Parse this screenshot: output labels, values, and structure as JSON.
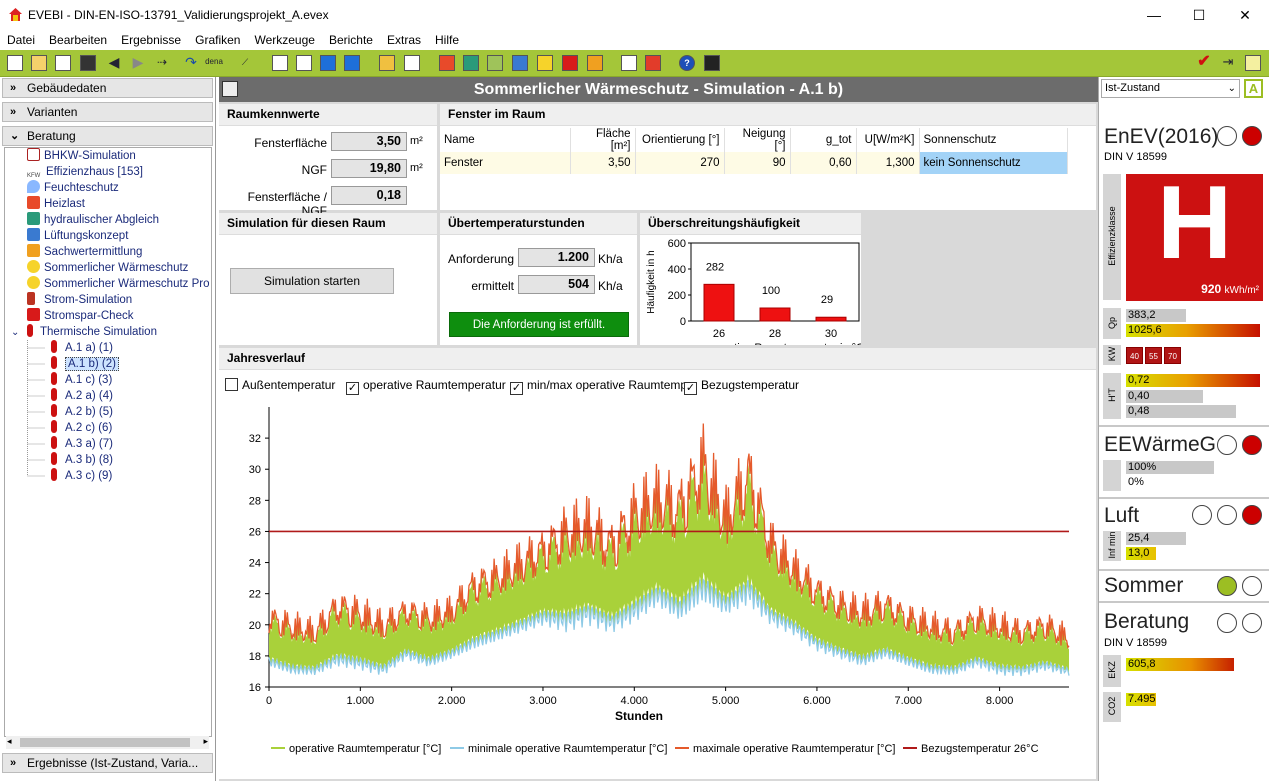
{
  "window": {
    "title": "EVEBI  - DIN-EN-ISO-13791_Validierungsprojekt_A.evex",
    "min": "—",
    "max": "☐",
    "close": "✕"
  },
  "menu": [
    "Datei",
    "Bearbeiten",
    "Ergebnisse",
    "Grafiken",
    "Werkzeuge",
    "Berichte",
    "Extras",
    "Hilfe"
  ],
  "toolbar": {
    "dena_label": "dena"
  },
  "left": {
    "sections": {
      "gebaeude": "Gebäudedaten",
      "varianten": "Varianten",
      "beratung": "Beratung",
      "ergebnisse": "Ergebnisse (Ist-Zustand, Varia..."
    },
    "tree": [
      "BHKW-Simulation",
      "Effizienzhaus [153]",
      "Feuchteschutz",
      "Heizlast",
      "hydraulischer Abgleich",
      "Lüftungskonzept",
      "Sachwertermittlung",
      "Sommerlicher Wärmeschutz",
      "Sommerlicher Wärmeschutz Pro",
      "Strom-Simulation",
      "Stromspar-Check",
      "Thermische Simulation"
    ],
    "kfw_icon_text": "KFW",
    "subitems": [
      "A.1 a) (1)",
      "A.1 b) (2)",
      "A.1 c) (3)",
      "A.2 a) (4)",
      "A.2 b) (5)",
      "A.2 c) (6)",
      "A.3 a) (7)",
      "A.3 b) (8)",
      "A.3 c) (9)"
    ]
  },
  "main": {
    "title": "Sommerlicher Wärmeschutz - Simulation - A.1 b)",
    "raumkennwerte": {
      "title": "Raumkennwerte",
      "fensterflaeche_label": "Fensterfläche",
      "fensterflaeche": "3,50",
      "unit_m2": "m²",
      "ngf_label": "NGF",
      "ngf": "19,80",
      "ratio_label": "Fensterfläche / NGF",
      "ratio": "0,18"
    },
    "fenster": {
      "title": "Fenster im Raum",
      "headers": [
        "Name",
        "Fläche [m²]",
        "Orientierung [°]",
        "Neigung [°]",
        "g_tot",
        "U[W/m²K]",
        "Sonnenschutz"
      ],
      "row": [
        "Fenster",
        "3,50",
        "270",
        "90",
        "0,60",
        "1,300",
        "kein Sonnenschutz"
      ]
    },
    "simulation": {
      "title": "Simulation für diesen Raum",
      "button": "Simulation starten"
    },
    "uebertemp": {
      "title": "Übertemperaturstunden",
      "anforderung_label": "Anforderung",
      "anforderung": "1.200",
      "ermittelt_label": "ermittelt",
      "ermittelt": "504",
      "unit": "Kh/a",
      "status": "Die Anforderung ist erfüllt."
    },
    "haeufigkeit": {
      "title": "Überschreitungshäufigkeit"
    },
    "jahresverlauf": {
      "title": "Jahresverlauf",
      "checks": [
        "Außentemperatur",
        "operative Raumtemperatur",
        "min/max operative Raumtemp.",
        "Bezugstemperatur"
      ],
      "checked": [
        false,
        true,
        true,
        true
      ]
    }
  },
  "chart_data": [
    {
      "type": "bar",
      "title": "",
      "xlabel": "operative Raumtemperatur in °C",
      "ylabel": "Häufigkeit in h",
      "categories": [
        "26",
        "28",
        "30"
      ],
      "values": [
        282,
        100,
        29
      ],
      "data_labels": [
        "282",
        "100",
        "29"
      ],
      "ylim": [
        0,
        600
      ],
      "yticks": [
        "0",
        "200",
        "400",
        "600"
      ],
      "color": "#ee1111"
    },
    {
      "type": "line",
      "title": "",
      "xlabel": "Stunden",
      "ylabel": "",
      "xlim": [
        0,
        8760
      ],
      "ylim": [
        16,
        34
      ],
      "xticks": [
        "0",
        "1.000",
        "2.000",
        "3.000",
        "4.000",
        "5.000",
        "6.000",
        "7.000",
        "8.000"
      ],
      "yticks": [
        "16",
        "18",
        "20",
        "22",
        "24",
        "26",
        "28",
        "30",
        "32"
      ],
      "legend": [
        "operative Raumtemperatur [°C]",
        "minimale operative Raumtemperatur [°C]",
        "maximale operative Raumtemperatur [°C]",
        "Bezugstemperatur 26°C"
      ],
      "legend_position": "bottom",
      "colors": {
        "operative": "#a9d13a",
        "minimum": "#8ecae6",
        "maximum": "#e55a2b",
        "reference": "#b01a1a"
      },
      "reference": 26,
      "envelope_x": [
        0,
        250,
        500,
        750,
        1000,
        1250,
        1500,
        1750,
        2000,
        2250,
        2500,
        2750,
        3000,
        3250,
        3500,
        3750,
        4000,
        4250,
        4500,
        4750,
        5000,
        5250,
        5500,
        5750,
        6000,
        6250,
        6500,
        6750,
        7000,
        7250,
        7500,
        7750,
        8000,
        8250,
        8500,
        8760
      ],
      "max_series": [
        21.5,
        21.0,
        20.5,
        22.5,
        22.0,
        21.0,
        22.0,
        21.5,
        22.0,
        24.0,
        24.5,
        25.5,
        26.5,
        28.0,
        28.5,
        27.0,
        29.5,
        30.5,
        30.0,
        33.5,
        29.0,
        32.5,
        27.0,
        25.0,
        23.5,
        22.5,
        22.0,
        22.5,
        21.5,
        21.0,
        20.5,
        21.5,
        21.0,
        20.5,
        21.0,
        20.0
      ],
      "min_series": [
        17.0,
        16.5,
        16.5,
        17.0,
        16.8,
        16.5,
        17.5,
        17.0,
        17.5,
        18.0,
        18.5,
        19.0,
        19.5,
        19.0,
        19.5,
        19.0,
        19.5,
        20.5,
        19.5,
        20.5,
        20.0,
        20.5,
        19.5,
        19.0,
        18.0,
        17.5,
        17.0,
        17.5,
        17.0,
        16.5,
        16.5,
        17.0,
        16.5,
        16.5,
        16.8,
        16.5
      ]
    }
  ],
  "right": {
    "state": "Ist-Zustand",
    "state_badge": "A",
    "enev": {
      "title": "EnEV(2016)",
      "norm": "DIN V 18599",
      "effizienz_label": "Effizienzklasse",
      "letter": "H",
      "value": "920",
      "unit": "kWh/m²",
      "qp_label": "Qp",
      "qp1": "383,2",
      "qp2": "1025,6",
      "qp_fill": 1.0,
      "kw_label": "KW",
      "kw": [
        "40",
        "55",
        "70"
      ],
      "ht_label": "H'T",
      "ht1": "0,72",
      "ht2": "0,40",
      "ht3": "0,48",
      "ht_fill": 1.0
    },
    "eew": {
      "title": "EEWärmeG",
      "v1": "100%",
      "v2": "0%"
    },
    "luft": {
      "title": "Luft",
      "label": "Inf min",
      "v1": "25,4",
      "v2": "13,0",
      "v2_fill": 0.5
    },
    "sommer": {
      "title": "Sommer"
    },
    "beratung": {
      "title": "Beratung",
      "norm": "DIN V 18599",
      "ekz_label": "EKZ",
      "ekz": "605,8",
      "ekz_fill": 1.0,
      "co2_label": "CO2",
      "co2": "7.495",
      "co2_fill": 0.5
    }
  }
}
